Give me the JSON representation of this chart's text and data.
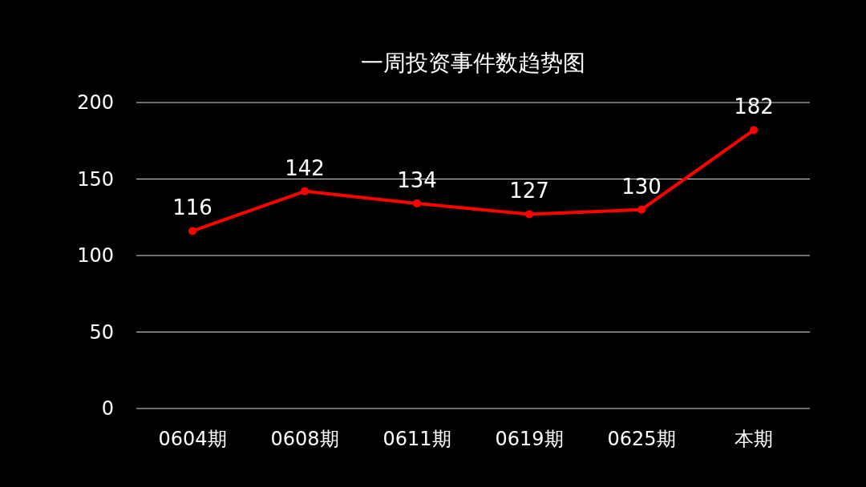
{
  "chart_data": {
    "type": "line",
    "title": "一周投资事件数趋势图",
    "categories": [
      "0604期",
      "0608期",
      "0611期",
      "0619期",
      "0625期",
      "本期"
    ],
    "series": [
      {
        "color": "#ff0000",
        "values": [
          116,
          142,
          134,
          127,
          130,
          182
        ]
      }
    ],
    "ylim": [
      0,
      200
    ],
    "yticks": [
      0,
      50,
      100,
      150,
      200
    ],
    "grid": "y",
    "data_labels": true,
    "marker": "circle",
    "line_style": "solid"
  }
}
